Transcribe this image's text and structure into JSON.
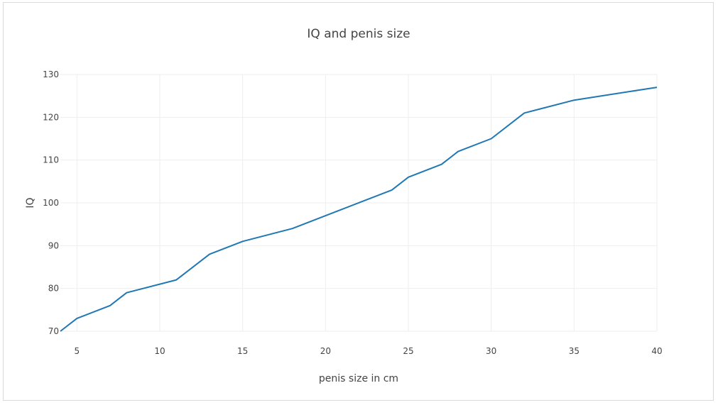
{
  "chart_data": {
    "type": "line",
    "title": "IQ and penis size",
    "xlabel": "penis size in cm",
    "ylabel": "IQ",
    "xlim": [
      4,
      40
    ],
    "ylim": [
      70,
      130
    ],
    "xticks": [
      5,
      10,
      15,
      20,
      25,
      30,
      35,
      40
    ],
    "yticks": [
      70,
      80,
      90,
      100,
      110,
      120,
      130
    ],
    "grid": true,
    "series": [
      {
        "color": "#1f77b4",
        "x": [
          4,
          5,
          7,
          8,
          11,
          13,
          15,
          18,
          24,
          25,
          27,
          28,
          30,
          32,
          35,
          40
        ],
        "y": [
          70,
          73,
          76,
          79,
          82,
          88,
          91,
          94,
          103,
          106,
          109,
          112,
          115,
          121,
          124,
          127
        ]
      }
    ]
  }
}
